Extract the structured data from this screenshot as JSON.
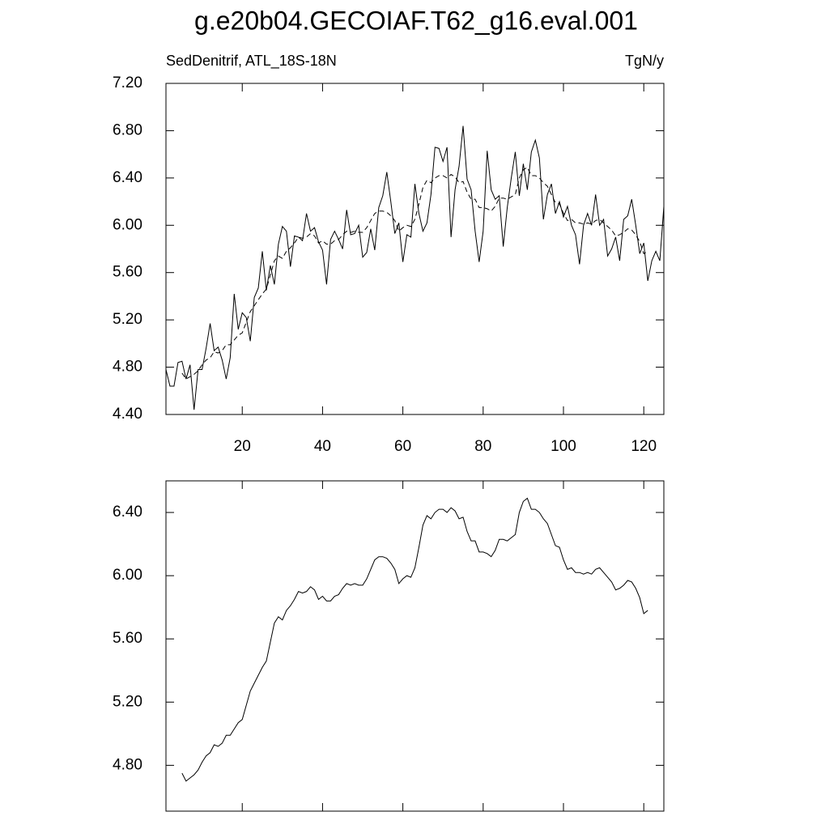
{
  "chart_data": [
    {
      "type": "line",
      "title": "g.e20b04.GECOIAF.T62_g16.eval.001",
      "subtitle_left": "SedDenitrif, ATL_18S-18N",
      "subtitle_right": "TgN/y",
      "xlim": [
        1,
        125
      ],
      "ylim": [
        4.4,
        7.2
      ],
      "xticks": [
        20,
        40,
        60,
        80,
        100,
        120
      ],
      "yticks": [
        {
          "value": 4.4,
          "label": "4.40"
        },
        {
          "value": 4.8,
          "label": "4.80"
        },
        {
          "value": 5.2,
          "label": "5.20"
        },
        {
          "value": 5.6,
          "label": "5.60"
        },
        {
          "value": 6.0,
          "label": "6.00"
        },
        {
          "value": 6.4,
          "label": "6.40"
        },
        {
          "value": 6.8,
          "label": "6.80"
        },
        {
          "value": 7.2,
          "label": "7.20"
        }
      ],
      "series": [
        {
          "color": "#000000",
          "dash": false,
          "x": [
            1,
            2,
            3,
            4,
            5,
            6,
            7,
            8,
            9,
            10,
            11,
            12,
            13,
            14,
            15,
            16,
            17,
            18,
            19,
            20,
            21,
            22,
            23,
            24,
            25,
            26,
            27,
            28,
            29,
            30,
            31,
            32,
            33,
            34,
            35,
            36,
            37,
            38,
            39,
            40,
            41,
            42,
            43,
            44,
            45,
            46,
            47,
            48,
            49,
            50,
            51,
            52,
            53,
            54,
            55,
            56,
            57,
            58,
            59,
            60,
            61,
            62,
            63,
            64,
            65,
            66,
            67,
            68,
            69,
            70,
            71,
            72,
            73,
            74,
            75,
            76,
            77,
            78,
            79,
            80,
            81,
            82,
            83,
            84,
            85,
            86,
            87,
            88,
            89,
            90,
            91,
            92,
            93,
            94,
            95,
            96,
            97,
            98,
            99,
            100,
            101,
            102,
            103,
            104,
            105,
            106,
            107,
            108,
            109,
            110,
            111,
            112,
            113,
            114,
            115,
            116,
            117,
            118,
            119,
            120,
            121,
            122,
            123,
            124,
            125
          ],
          "values": [
            4.78,
            4.64,
            4.64,
            4.84,
            4.85,
            4.7,
            4.82,
            4.44,
            4.78,
            4.78,
            4.96,
            5.17,
            4.94,
            4.97,
            4.86,
            4.7,
            4.88,
            5.42,
            5.12,
            5.26,
            5.22,
            5.02,
            5.39,
            5.47,
            5.78,
            5.45,
            5.66,
            5.5,
            5.84,
            5.99,
            5.95,
            5.65,
            5.91,
            5.9,
            5.87,
            6.1,
            5.95,
            5.98,
            5.86,
            5.79,
            5.5,
            5.88,
            5.95,
            5.88,
            5.8,
            6.13,
            5.92,
            5.93,
            6.0,
            5.73,
            5.77,
            5.97,
            5.79,
            6.15,
            6.25,
            6.45,
            6.2,
            5.93,
            6.02,
            5.69,
            5.92,
            5.9,
            6.35,
            6.1,
            5.95,
            6.02,
            6.26,
            6.66,
            6.65,
            6.54,
            6.66,
            5.9,
            6.3,
            6.5,
            6.84,
            6.39,
            6.3,
            5.95,
            5.69,
            5.95,
            6.63,
            6.3,
            6.22,
            6.25,
            5.82,
            6.15,
            6.4,
            6.62,
            6.25,
            6.52,
            6.3,
            6.62,
            6.72,
            6.57,
            6.05,
            6.26,
            6.35,
            6.1,
            6.2,
            6.07,
            6.16,
            6.0,
            5.92,
            5.67,
            6.0,
            6.1,
            6.0,
            6.26,
            6.0,
            6.05,
            5.74,
            5.8,
            5.9,
            5.7,
            6.05,
            6.08,
            6.22,
            6.0,
            5.76,
            5.85,
            5.53,
            5.7,
            5.78,
            5.7,
            6.16
          ]
        },
        {
          "color": "#000000",
          "dash": true,
          "x": [
            5,
            6,
            7,
            8,
            9,
            10,
            11,
            12,
            13,
            14,
            15,
            16,
            17,
            18,
            19,
            20,
            21,
            22,
            23,
            24,
            25,
            26,
            27,
            28,
            29,
            30,
            31,
            32,
            33,
            34,
            35,
            36,
            37,
            38,
            39,
            40,
            41,
            42,
            43,
            44,
            45,
            46,
            47,
            48,
            49,
            50,
            51,
            52,
            53,
            54,
            55,
            56,
            57,
            58,
            59,
            60,
            61,
            62,
            63,
            64,
            65,
            66,
            67,
            68,
            69,
            70,
            71,
            72,
            73,
            74,
            75,
            76,
            77,
            78,
            79,
            80,
            81,
            82,
            83,
            84,
            85,
            86,
            87,
            88,
            89,
            90,
            91,
            92,
            93,
            94,
            95,
            96,
            97,
            98,
            99,
            100,
            101,
            102,
            103,
            104,
            105,
            106,
            107,
            108,
            109,
            110,
            111,
            112,
            113,
            114,
            115,
            116,
            117,
            118,
            119,
            120,
            121
          ],
          "values": [
            4.75,
            4.7,
            4.72,
            4.74,
            4.77,
            4.82,
            4.86,
            4.88,
            4.93,
            4.92,
            4.94,
            4.99,
            4.99,
            5.03,
            5.07,
            5.09,
            5.18,
            5.27,
            5.32,
            5.37,
            5.42,
            5.46,
            5.58,
            5.7,
            5.74,
            5.72,
            5.78,
            5.81,
            5.85,
            5.9,
            5.89,
            5.9,
            5.93,
            5.91,
            5.85,
            5.87,
            5.84,
            5.84,
            5.87,
            5.88,
            5.92,
            5.95,
            5.94,
            5.95,
            5.94,
            5.94,
            5.98,
            6.04,
            6.1,
            6.12,
            6.12,
            6.11,
            6.08,
            6.04,
            5.95,
            5.98,
            6.0,
            5.99,
            6.05,
            6.18,
            6.32,
            6.38,
            6.36,
            6.4,
            6.42,
            6.42,
            6.4,
            6.43,
            6.41,
            6.36,
            6.37,
            6.28,
            6.22,
            6.22,
            6.15,
            6.15,
            6.14,
            6.12,
            6.16,
            6.23,
            6.23,
            6.22,
            6.24,
            6.26,
            6.4,
            6.47,
            6.49,
            6.42,
            6.42,
            6.4,
            6.36,
            6.33,
            6.26,
            6.19,
            6.18,
            6.1,
            6.04,
            6.05,
            6.02,
            6.02,
            6.01,
            6.02,
            6.01,
            6.04,
            6.05,
            6.02,
            5.99,
            5.96,
            5.91,
            5.92,
            5.94,
            5.97,
            5.96,
            5.92,
            5.86,
            5.76,
            5.78
          ]
        }
      ]
    },
    {
      "type": "line",
      "xlim": [
        1,
        125
      ],
      "ylim": [
        4.51,
        6.6
      ],
      "xticks": [
        20,
        40,
        60,
        80,
        100,
        120
      ],
      "yticks": [
        {
          "value": 4.8,
          "label": "4.80"
        },
        {
          "value": 5.2,
          "label": "5.20"
        },
        {
          "value": 5.6,
          "label": "5.60"
        },
        {
          "value": 6.0,
          "label": "6.00"
        },
        {
          "value": 6.4,
          "label": "6.40"
        }
      ],
      "series": [
        {
          "color": "#000000",
          "dash": false,
          "x": [
            5,
            6,
            7,
            8,
            9,
            10,
            11,
            12,
            13,
            14,
            15,
            16,
            17,
            18,
            19,
            20,
            21,
            22,
            23,
            24,
            25,
            26,
            27,
            28,
            29,
            30,
            31,
            32,
            33,
            34,
            35,
            36,
            37,
            38,
            39,
            40,
            41,
            42,
            43,
            44,
            45,
            46,
            47,
            48,
            49,
            50,
            51,
            52,
            53,
            54,
            55,
            56,
            57,
            58,
            59,
            60,
            61,
            62,
            63,
            64,
            65,
            66,
            67,
            68,
            69,
            70,
            71,
            72,
            73,
            74,
            75,
            76,
            77,
            78,
            79,
            80,
            81,
            82,
            83,
            84,
            85,
            86,
            87,
            88,
            89,
            90,
            91,
            92,
            93,
            94,
            95,
            96,
            97,
            98,
            99,
            100,
            101,
            102,
            103,
            104,
            105,
            106,
            107,
            108,
            109,
            110,
            111,
            112,
            113,
            114,
            115,
            116,
            117,
            118,
            119,
            120,
            121
          ],
          "values": [
            4.75,
            4.7,
            4.72,
            4.74,
            4.77,
            4.82,
            4.86,
            4.88,
            4.93,
            4.92,
            4.94,
            4.99,
            4.99,
            5.03,
            5.07,
            5.09,
            5.18,
            5.27,
            5.32,
            5.37,
            5.42,
            5.46,
            5.58,
            5.7,
            5.74,
            5.72,
            5.78,
            5.81,
            5.85,
            5.9,
            5.89,
            5.9,
            5.93,
            5.91,
            5.85,
            5.87,
            5.84,
            5.84,
            5.87,
            5.88,
            5.92,
            5.95,
            5.94,
            5.95,
            5.94,
            5.94,
            5.98,
            6.04,
            6.1,
            6.12,
            6.12,
            6.11,
            6.08,
            6.04,
            5.95,
            5.98,
            6.0,
            5.99,
            6.05,
            6.18,
            6.32,
            6.38,
            6.36,
            6.4,
            6.42,
            6.42,
            6.4,
            6.43,
            6.41,
            6.36,
            6.37,
            6.28,
            6.22,
            6.22,
            6.15,
            6.15,
            6.14,
            6.12,
            6.16,
            6.23,
            6.23,
            6.22,
            6.24,
            6.26,
            6.4,
            6.47,
            6.49,
            6.42,
            6.42,
            6.4,
            6.36,
            6.33,
            6.26,
            6.19,
            6.18,
            6.1,
            6.04,
            6.05,
            6.02,
            6.02,
            6.01,
            6.02,
            6.01,
            6.04,
            6.05,
            6.02,
            5.99,
            5.96,
            5.91,
            5.92,
            5.94,
            5.97,
            5.96,
            5.92,
            5.86,
            5.76,
            5.78
          ]
        }
      ]
    }
  ]
}
